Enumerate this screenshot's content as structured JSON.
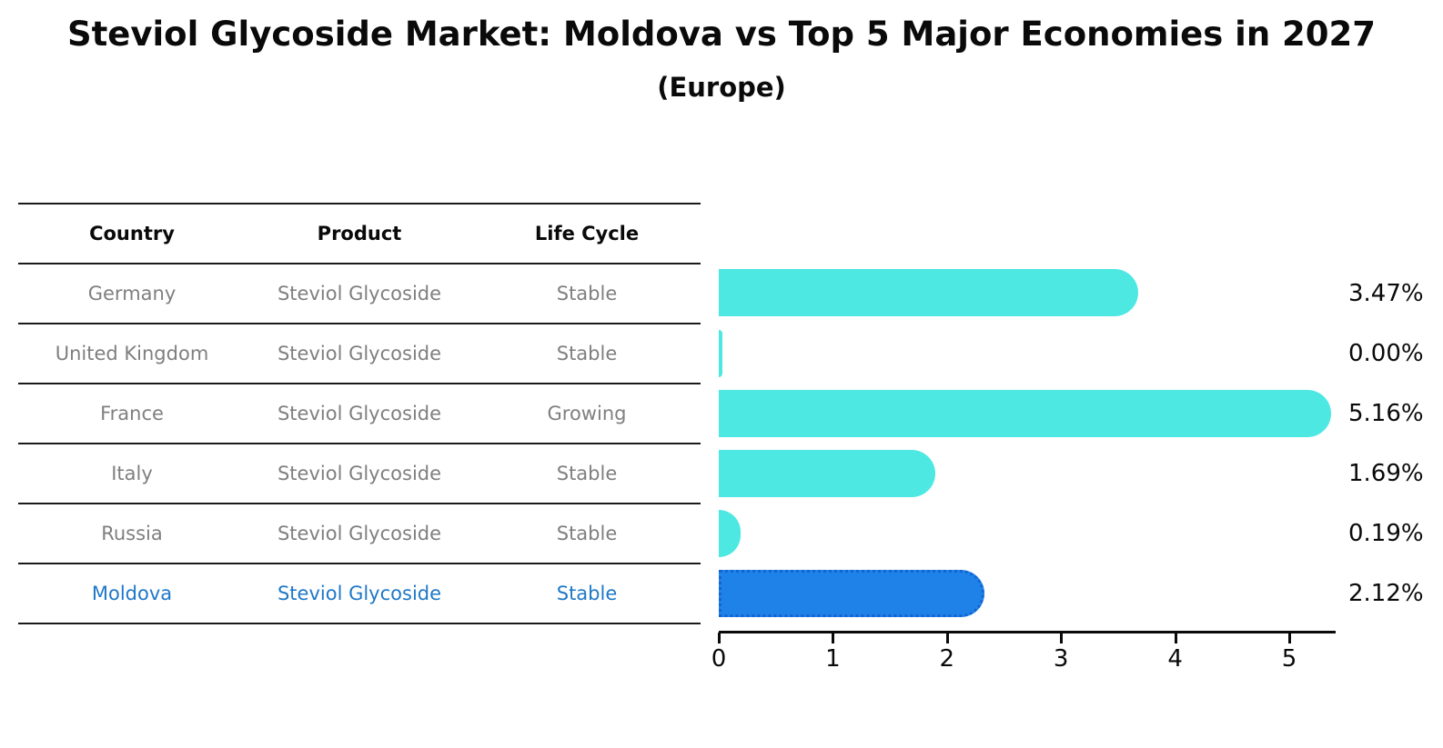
{
  "title": "Steviol Glycoside Market: Moldova vs Top 5 Major Economies in 2027",
  "subtitle": "(Europe)",
  "table": {
    "headers": [
      "Country",
      "Product",
      "Life Cycle"
    ],
    "rows": [
      {
        "country": "Germany",
        "product": "Steviol Glycoside",
        "life_cycle": "Stable",
        "highlight": false
      },
      {
        "country": "United Kingdom",
        "product": "Steviol Glycoside",
        "life_cycle": "Stable",
        "highlight": false
      },
      {
        "country": "France",
        "product": "Steviol Glycoside",
        "life_cycle": "Growing",
        "highlight": false
      },
      {
        "country": "Italy",
        "product": "Steviol Glycoside",
        "life_cycle": "Stable",
        "highlight": false
      },
      {
        "country": "Russia",
        "product": "Steviol Glycoside",
        "life_cycle": "Stable",
        "highlight": false
      },
      {
        "country": "Moldova",
        "product": "Steviol Glycoside",
        "life_cycle": "Stable",
        "highlight": true
      }
    ]
  },
  "chart_data": {
    "type": "bar",
    "orientation": "horizontal",
    "title": "Steviol Glycoside Market: Moldova vs Top 5 Major Economies in 2027 (Europe)",
    "categories": [
      "Germany",
      "United Kingdom",
      "France",
      "Italy",
      "Russia",
      "Moldova"
    ],
    "values": [
      3.47,
      0.0,
      5.16,
      1.69,
      0.19,
      2.12
    ],
    "value_labels": [
      "3.47%",
      "0.00%",
      "5.16%",
      "1.69%",
      "0.19%",
      "2.12%"
    ],
    "x_ticks": [
      "0",
      "1",
      "2",
      "3",
      "4",
      "5"
    ],
    "xlim": [
      0,
      5.4
    ],
    "grid": false,
    "legend": false,
    "highlight_index": 5
  },
  "colors": {
    "bar": "#4DE8E2",
    "highlight_bar": "#1E82E8",
    "highlight_bar_border": "#1464D2",
    "highlight_text": "#1E78C8",
    "table_line": "#1a1a1a",
    "body_text": "#7f7f7f",
    "heading_text": "#0a0a0a"
  }
}
